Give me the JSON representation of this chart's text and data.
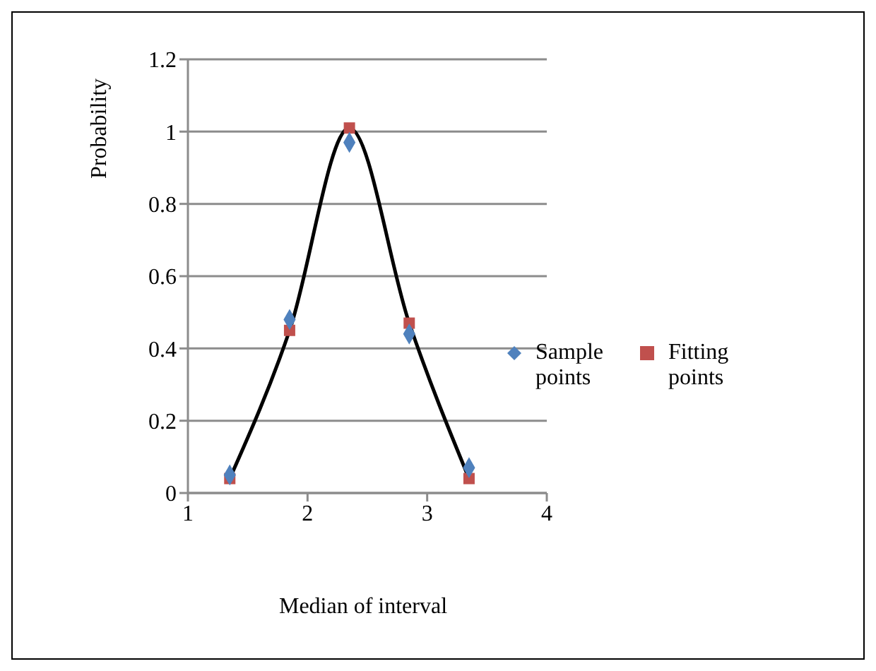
{
  "chart_data": {
    "type": "scatter",
    "xlabel": "Median of interval",
    "ylabel": "Probability",
    "xlim": [
      1,
      4
    ],
    "xticks": [
      1,
      2,
      3,
      4
    ],
    "ylim": [
      0,
      1.2
    ],
    "yticks": [
      0,
      0.2,
      0.4,
      0.6,
      0.8,
      1,
      1.2
    ],
    "grid": "y",
    "legend": "right",
    "series": [
      {
        "name": "Sample points",
        "marker": "diamond",
        "color": "#4f81bd",
        "x": [
          1.35,
          1.85,
          2.35,
          2.85,
          3.35
        ],
        "values": [
          0.05,
          0.48,
          0.97,
          0.44,
          0.07
        ]
      },
      {
        "type": "line",
        "marker": "none",
        "color": "#000000",
        "x": [
          1.35,
          1.85,
          2.35,
          2.85,
          3.35
        ],
        "values": [
          0.04,
          0.45,
          1.01,
          0.47,
          0.04
        ]
      },
      {
        "name": "Fitting points",
        "marker": "square",
        "color": "#c0504d",
        "x": [
          1.35,
          1.85,
          2.35,
          2.85,
          3.35
        ],
        "values": [
          0.04,
          0.45,
          1.01,
          0.47,
          0.04
        ]
      }
    ]
  }
}
